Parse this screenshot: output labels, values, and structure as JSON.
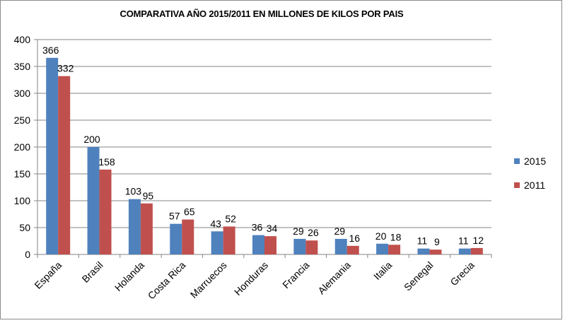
{
  "colors": {
    "s2015": "#4f81bd",
    "s2011": "#c0504d",
    "grid": "#868686",
    "axis": "#868686",
    "text": "#000000"
  },
  "chart_data": {
    "type": "bar",
    "title": "COMPARATIVA AÑO 2015/2011 EN MILLONES DE KILOS POR PAIS",
    "xlabel": "",
    "ylabel": "",
    "ylim": [
      0,
      400
    ],
    "yticks": [
      0,
      50,
      100,
      150,
      200,
      250,
      300,
      350,
      400
    ],
    "grid": true,
    "legend_position": "right",
    "categories": [
      "España",
      "Brasil",
      "Holanda",
      "Costa Rica",
      "Marruecos",
      "Honduras",
      "Francia",
      "Alemania",
      "Italia",
      "Senegal",
      "Grecia"
    ],
    "series": [
      {
        "name": "2015",
        "values": [
          366,
          200,
          103,
          57,
          43,
          36,
          29,
          29,
          20,
          11,
          11
        ]
      },
      {
        "name": "2011",
        "values": [
          332,
          158,
          95,
          65,
          52,
          34,
          26,
          16,
          18,
          9,
          12
        ]
      }
    ]
  }
}
